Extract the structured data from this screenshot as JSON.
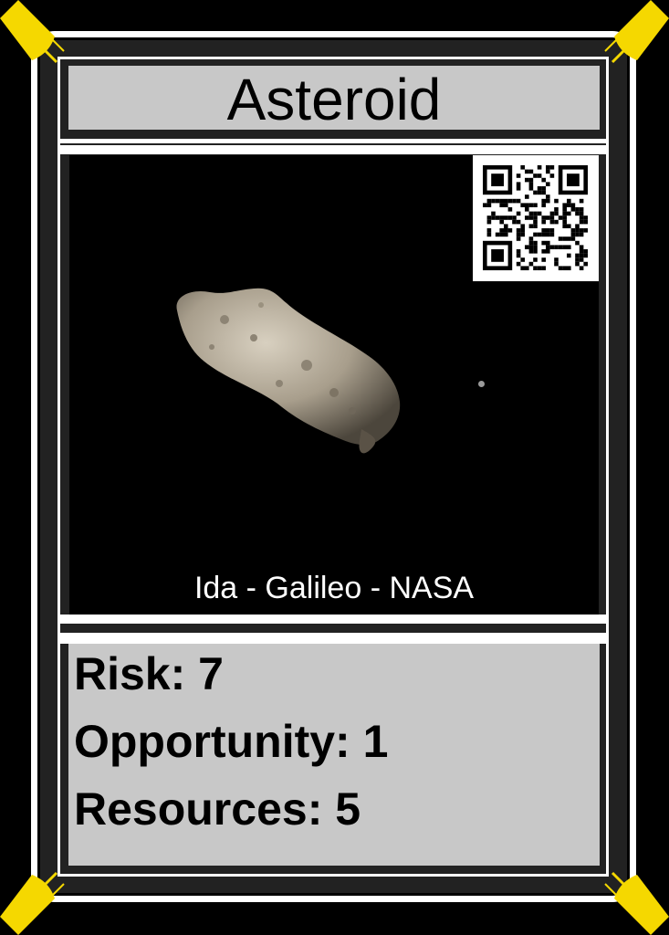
{
  "card": {
    "title": "Asteroid",
    "image_caption": "Ida - Galileo - NASA",
    "stats": {
      "risk_label": "Risk: 7",
      "opportunity_label": "Opportunity: 1",
      "resources_label": "Resources: 5"
    }
  },
  "icons": {
    "corner": "satellite-dish-icon",
    "qr": "qr-code"
  },
  "colors": {
    "background": "#000000",
    "panel_gray": "#c8c8c8",
    "frame_white": "#ffffff",
    "frame_band": "#222222",
    "corner_yellow": "#f5d800"
  }
}
